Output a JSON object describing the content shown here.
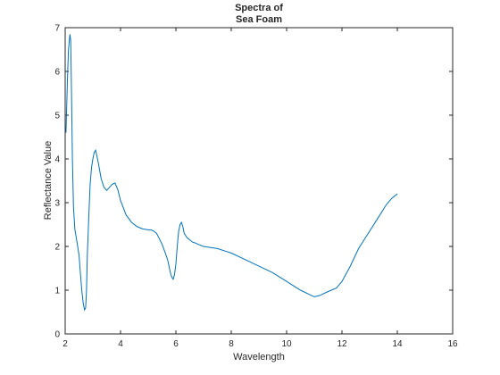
{
  "chart_data": {
    "type": "line",
    "title_lines": [
      "Spectra of",
      "Sea Foam"
    ],
    "xlabel": "Wavelength",
    "ylabel": "Reflectance Value",
    "xlim": [
      2,
      16
    ],
    "ylim": [
      0,
      7
    ],
    "xticks": [
      2,
      4,
      6,
      8,
      10,
      12,
      14,
      16
    ],
    "yticks": [
      0,
      1,
      2,
      3,
      4,
      5,
      6,
      7
    ],
    "grid": false,
    "colors": {
      "line": "#0072bd",
      "axes": "#262626",
      "background": "#ffffff"
    },
    "series": [
      {
        "x": [
          2.03,
          2.08,
          2.12,
          2.17,
          2.2,
          2.23,
          2.26,
          2.3,
          2.35,
          2.4,
          2.45,
          2.5,
          2.55,
          2.6,
          2.65,
          2.7,
          2.74,
          2.77,
          2.8,
          2.85,
          2.9,
          2.95,
          3.0,
          3.05,
          3.1,
          3.15,
          3.2,
          3.3,
          3.4,
          3.5,
          3.6,
          3.7,
          3.8,
          3.9,
          4.0,
          4.2,
          4.4,
          4.6,
          4.8,
          5.0,
          5.1,
          5.2,
          5.3,
          5.4,
          5.5,
          5.6,
          5.7,
          5.75,
          5.8,
          5.85,
          5.9,
          5.95,
          6.0,
          6.05,
          6.1,
          6.15,
          6.2,
          6.25,
          6.3,
          6.4,
          6.5,
          6.6,
          6.7,
          6.8,
          7.0,
          7.5,
          8.0,
          8.5,
          9.0,
          9.5,
          10.0,
          10.5,
          11.0,
          11.2,
          11.5,
          11.8,
          12.0,
          12.3,
          12.6,
          13.0,
          13.3,
          13.6,
          13.8,
          13.9,
          14.0
        ],
        "y": [
          4.6,
          5.8,
          6.5,
          6.85,
          6.7,
          5.5,
          4.0,
          2.9,
          2.4,
          2.2,
          2.0,
          1.8,
          1.4,
          1.0,
          0.7,
          0.55,
          0.6,
          1.0,
          1.8,
          2.6,
          3.4,
          3.8,
          4.0,
          4.15,
          4.2,
          4.05,
          3.9,
          3.55,
          3.35,
          3.28,
          3.35,
          3.42,
          3.45,
          3.3,
          3.05,
          2.72,
          2.55,
          2.45,
          2.4,
          2.38,
          2.38,
          2.35,
          2.3,
          2.18,
          2.05,
          1.88,
          1.7,
          1.55,
          1.4,
          1.3,
          1.25,
          1.35,
          1.6,
          2.0,
          2.35,
          2.5,
          2.55,
          2.45,
          2.3,
          2.2,
          2.15,
          2.1,
          2.08,
          2.05,
          2.0,
          1.95,
          1.85,
          1.7,
          1.55,
          1.4,
          1.2,
          1.0,
          0.85,
          0.88,
          0.97,
          1.05,
          1.2,
          1.55,
          1.95,
          2.35,
          2.65,
          2.95,
          3.1,
          3.15,
          3.2
        ]
      }
    ]
  }
}
